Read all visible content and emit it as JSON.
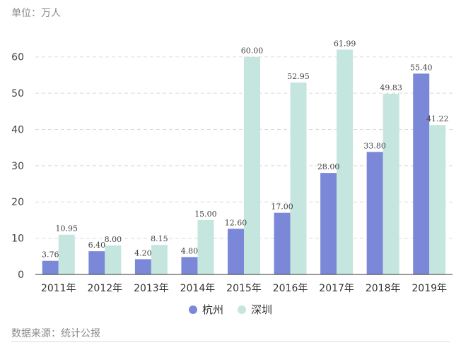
{
  "unit_label": "单位：万人",
  "source_label": "数据来源：统计公报",
  "colors": {
    "hangzhou": "#7b88d8",
    "shenzhen": "#c5e6de",
    "grid": "#d9d9d9",
    "axis": "#333333"
  },
  "chart_data": {
    "type": "bar",
    "title": "",
    "xlabel": "",
    "ylabel": "",
    "categories": [
      "2011年",
      "2012年",
      "2013年",
      "2014年",
      "2015年",
      "2016年",
      "2017年",
      "2018年",
      "2019年"
    ],
    "ylim": [
      0,
      65
    ],
    "yticks": [
      0,
      10,
      20,
      30,
      40,
      50,
      60
    ],
    "grid": true,
    "legend_position": "bottom-center",
    "series": [
      {
        "name": "杭州",
        "color": "#7b88d8",
        "values": [
          3.76,
          6.4,
          4.2,
          4.8,
          12.6,
          17.0,
          28.0,
          33.8,
          55.4
        ],
        "labels": [
          "3.76",
          "6.40",
          "4.20",
          "4.80",
          "12.60",
          "17.00",
          "28.00",
          "33.80",
          "55.40"
        ]
      },
      {
        "name": "深圳",
        "color": "#c5e6de",
        "values": [
          10.95,
          8.0,
          8.15,
          15.0,
          60.0,
          52.95,
          61.99,
          49.83,
          41.22
        ],
        "labels": [
          "10.95",
          "8.00",
          "8.15",
          "15.00",
          "60.00",
          "52.95",
          "61.99",
          "49.83",
          "41.22"
        ]
      }
    ]
  }
}
